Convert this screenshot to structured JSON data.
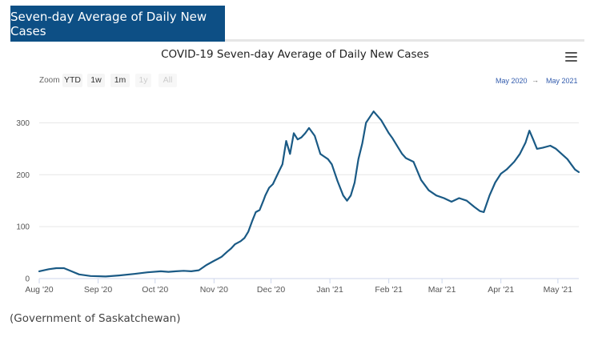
{
  "tab": {
    "label": "Seven-day Average of Daily New Cases"
  },
  "menu_icon": "hamburger-menu-icon",
  "zoom": {
    "label": "Zoom",
    "buttons": [
      {
        "label": "YTD",
        "enabled": true
      },
      {
        "label": "1w",
        "enabled": true
      },
      {
        "label": "1m",
        "enabled": true
      },
      {
        "label": "1y",
        "enabled": false
      },
      {
        "label": "All",
        "enabled": false
      }
    ]
  },
  "range": {
    "from": "May 2020",
    "arrow": "→",
    "to": "May 2021"
  },
  "caption": "(Government of Saskatchewan)",
  "colors": {
    "accent": "#0d4f85",
    "line": "#1a5a85",
    "grid": "#e6e6e6"
  },
  "chart_data": {
    "type": "line",
    "title": "COVID-19 Seven-day Average of Daily New Cases",
    "xlabel": "",
    "ylabel": "",
    "ylim": [
      0,
      350
    ],
    "yticks": [
      0,
      100,
      200,
      300
    ],
    "xlim": [
      "2020-08-01",
      "2021-05-12"
    ],
    "xticks": [
      {
        "date": "2020-08-01",
        "label": "Aug '20"
      },
      {
        "date": "2020-09-01",
        "label": "Sep '20"
      },
      {
        "date": "2020-10-01",
        "label": "Oct '20"
      },
      {
        "date": "2020-11-01",
        "label": "Nov '20"
      },
      {
        "date": "2020-12-01",
        "label": "Dec '20"
      },
      {
        "date": "2021-01-01",
        "label": "Jan '21"
      },
      {
        "date": "2021-02-01",
        "label": "Feb '21"
      },
      {
        "date": "2021-03-01",
        "label": "Mar '21"
      },
      {
        "date": "2021-04-01",
        "label": "Apr '21"
      },
      {
        "date": "2021-05-01",
        "label": "May '21"
      }
    ],
    "grid": true,
    "legend": "none",
    "series": [
      {
        "x": [
          "2020-08-01",
          "2020-08-06",
          "2020-08-10",
          "2020-08-14",
          "2020-08-18",
          "2020-08-22",
          "2020-08-28",
          "2020-09-05",
          "2020-09-12",
          "2020-09-20",
          "2020-09-27",
          "2020-10-04",
          "2020-10-08",
          "2020-10-12",
          "2020-10-16",
          "2020-10-20",
          "2020-10-24",
          "2020-10-28",
          "2020-11-01",
          "2020-11-03",
          "2020-11-05",
          "2020-11-08",
          "2020-11-10",
          "2020-11-12",
          "2020-11-15",
          "2020-11-17",
          "2020-11-19",
          "2020-11-21",
          "2020-11-23",
          "2020-11-25",
          "2020-11-27",
          "2020-11-28",
          "2020-11-30",
          "2020-12-02",
          "2020-12-05",
          "2020-12-07",
          "2020-12-09",
          "2020-12-11",
          "2020-12-13",
          "2020-12-15",
          "2020-12-17",
          "2020-12-19",
          "2020-12-21",
          "2020-12-24",
          "2020-12-27",
          "2020-12-29",
          "2020-12-31",
          "2021-01-02",
          "2021-01-05",
          "2021-01-08",
          "2021-01-10",
          "2021-01-12",
          "2021-01-14",
          "2021-01-16",
          "2021-01-18",
          "2021-01-20",
          "2021-01-24",
          "2021-01-28",
          "2021-02-01",
          "2021-02-03",
          "2021-02-06",
          "2021-02-08",
          "2021-02-10",
          "2021-02-14",
          "2021-02-18",
          "2021-02-22",
          "2021-02-26",
          "2021-03-02",
          "2021-03-06",
          "2021-03-10",
          "2021-03-14",
          "2021-03-18",
          "2021-03-21",
          "2021-03-23",
          "2021-03-26",
          "2021-03-29",
          "2021-04-01",
          "2021-04-04",
          "2021-04-08",
          "2021-04-11",
          "2021-04-14",
          "2021-04-16",
          "2021-04-18",
          "2021-04-20",
          "2021-04-23",
          "2021-04-27",
          "2021-04-30",
          "2021-05-03",
          "2021-05-06",
          "2021-05-08",
          "2021-05-10",
          "2021-05-12"
        ],
        "values": [
          14,
          18,
          20,
          20,
          14,
          8,
          5,
          4,
          6,
          9,
          12,
          14,
          13,
          14,
          15,
          14,
          16,
          26,
          34,
          38,
          42,
          52,
          58,
          66,
          72,
          78,
          90,
          110,
          128,
          132,
          150,
          160,
          175,
          182,
          205,
          220,
          265,
          240,
          280,
          268,
          272,
          280,
          290,
          275,
          240,
          235,
          230,
          220,
          188,
          160,
          150,
          160,
          185,
          230,
          260,
          300,
          322,
          305,
          280,
          270,
          252,
          240,
          232,
          225,
          190,
          170,
          160,
          155,
          148,
          155,
          150,
          138,
          130,
          128,
          160,
          185,
          202,
          210,
          225,
          240,
          262,
          285,
          268,
          250,
          252,
          256,
          250,
          240,
          230,
          220,
          210,
          205
        ]
      }
    ]
  }
}
